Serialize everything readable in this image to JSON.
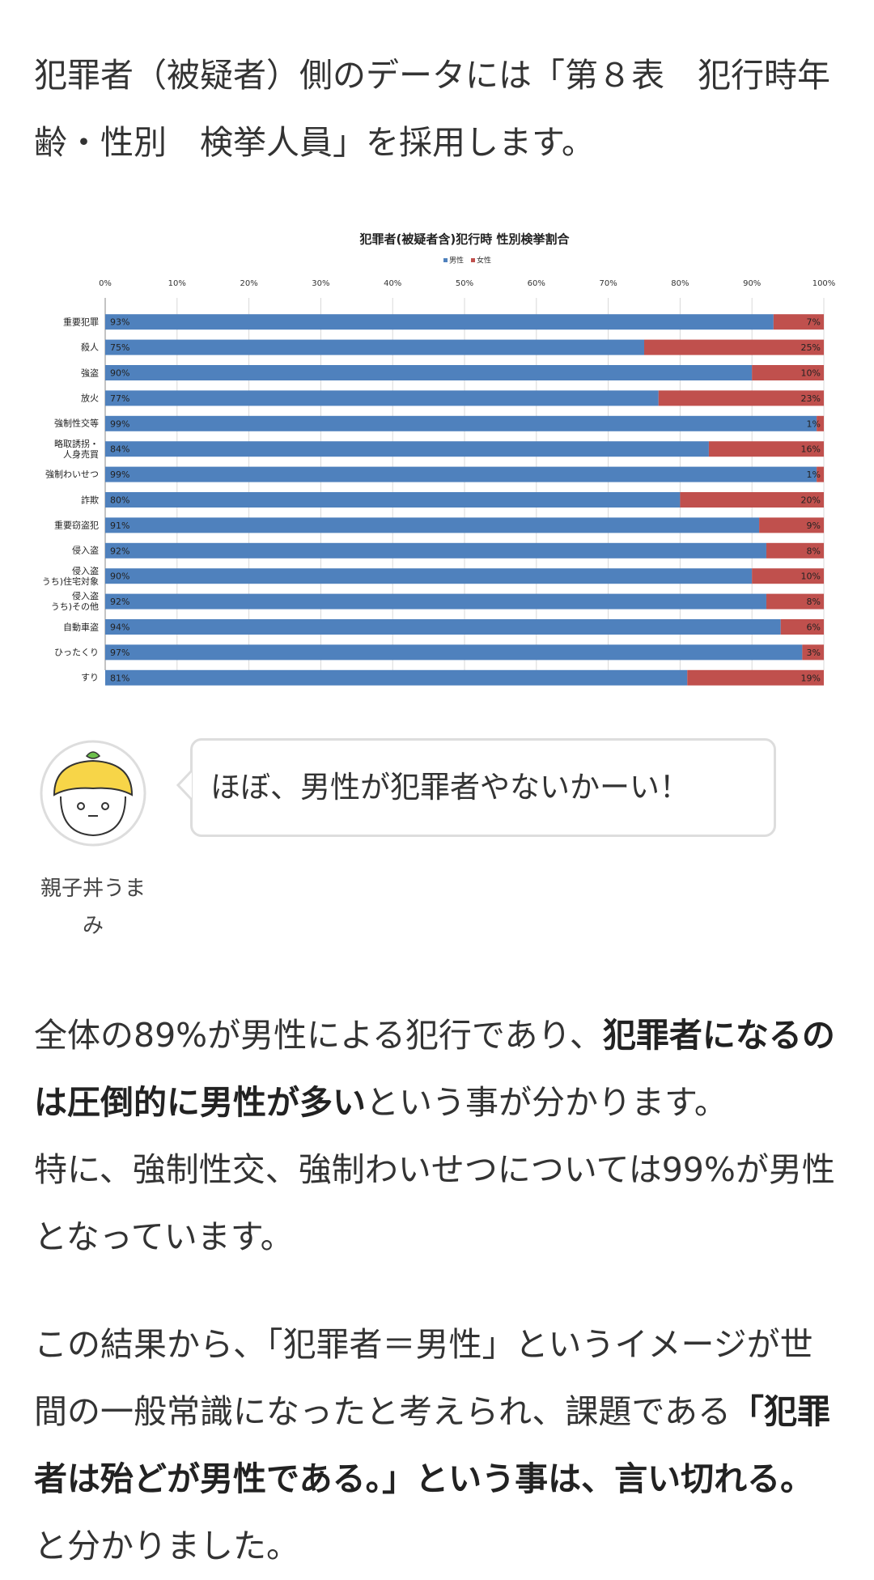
{
  "intro": "犯罪者（被疑者）側のデータには「第８表　犯行時年齢・性別　検挙人員」を採用します。",
  "chart_data": {
    "type": "stacked-bar-horizontal",
    "title": "犯罪者(被疑者含)犯行時 性別検挙割合",
    "categories": [
      "重要犯罪",
      "殺人",
      "強盗",
      "放火",
      "強制性交等",
      "略取誘拐・\n人身売買",
      "強制わいせつ",
      "詐欺",
      "重要窃盗犯",
      "侵入盗",
      "侵入盗\nうち)住宅対象",
      "侵入盗\nうち)その他",
      "自動車盗",
      "ひったくり",
      "すり"
    ],
    "series": [
      {
        "name": "男性",
        "color": "#4f81bd",
        "values": [
          93,
          75,
          90,
          77,
          99,
          84,
          99,
          80,
          91,
          92,
          90,
          92,
          94,
          97,
          81
        ],
        "value_labels": [
          "93%",
          "75%",
          "90%",
          "77%",
          "99%",
          "84%",
          "99%",
          "80%",
          "91%",
          "92%",
          "90%",
          "92%",
          "94%",
          "97%",
          "81%"
        ]
      },
      {
        "name": "女性",
        "color": "#c0504d",
        "values": [
          7,
          25,
          10,
          23,
          1,
          16,
          1,
          20,
          9,
          8,
          10,
          8,
          6,
          3,
          19
        ],
        "value_labels": [
          "7%",
          "25%",
          "10%",
          "23%",
          "1%",
          "16%",
          "1%",
          "20%",
          "9%",
          "8%",
          "10%",
          "8%",
          "6%",
          "3%",
          "19%"
        ]
      }
    ],
    "xlim": [
      0,
      100
    ],
    "xticks": [
      {
        "value": 0,
        "label": "0%"
      },
      {
        "value": 10,
        "label": "10%"
      },
      {
        "value": 20,
        "label": "20%"
      },
      {
        "value": 30,
        "label": "30%"
      },
      {
        "value": 40,
        "label": "40%"
      },
      {
        "value": 50,
        "label": "50%"
      },
      {
        "value": 60,
        "label": "60%"
      },
      {
        "value": 70,
        "label": "70%"
      },
      {
        "value": 80,
        "label": "80%"
      },
      {
        "value": 90,
        "label": "90%"
      },
      {
        "value": 100,
        "label": "100%"
      }
    ],
    "grid": true,
    "legend": "top"
  },
  "speech": {
    "name": "親子丼うまみ",
    "text": "ほぼ、男性が犯罪者やないかーい！"
  },
  "paragraphs": [
    {
      "segments": [
        {
          "text": "全体の89%が男性による犯行であり、"
        },
        {
          "text": "犯罪者になるのは圧倒的に男性が多い",
          "bold": true
        },
        {
          "text": "という事が分かります。\n特に、強制性交、強制わいせつについては99%が男性となっています。"
        }
      ]
    },
    {
      "segments": [
        {
          "text": "この結果から、「犯罪者＝男性」というイメージが世間の一般常識になったと考えられ、課題である"
        },
        {
          "text": "「犯罪者は殆どが男性である。」という事は、言い切れる。",
          "bold": true
        },
        {
          "text": "と分かりました。"
        }
      ]
    }
  ]
}
